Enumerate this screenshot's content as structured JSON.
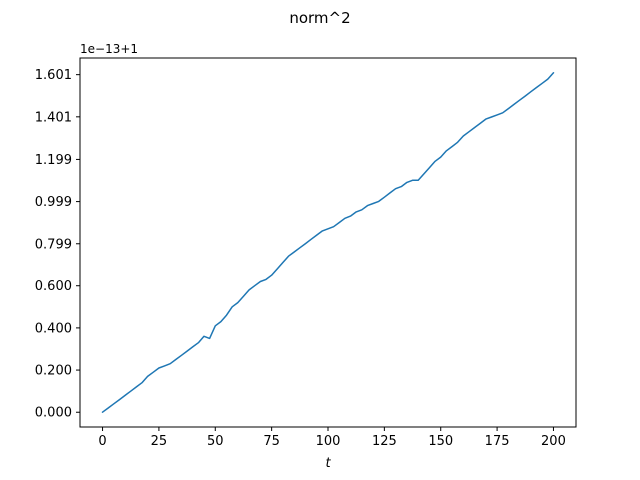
{
  "chart_data": {
    "type": "line",
    "title": "norm^2",
    "xlabel": "t",
    "ylabel": "",
    "y_offset_label": "1e−13+1",
    "xlim": [
      -10,
      210
    ],
    "ylim": [
      -0.07,
      1.68
    ],
    "xticks": [
      0,
      25,
      50,
      75,
      100,
      125,
      150,
      175,
      200
    ],
    "xtick_labels": [
      "0",
      "25",
      "50",
      "75",
      "100",
      "125",
      "150",
      "175",
      "200"
    ],
    "yticks": [
      0.0,
      0.2,
      0.4,
      0.6,
      0.799,
      0.999,
      1.199,
      1.401,
      1.601
    ],
    "ytick_labels": [
      "0.000",
      "0.200",
      "0.400",
      "0.600",
      "0.799",
      "0.999",
      "1.199",
      "1.401",
      "1.601"
    ],
    "grid": false,
    "series": [
      {
        "color": "#1f77b4",
        "x": [
          0,
          2.5,
          5,
          7.5,
          10,
          12.5,
          15,
          17.5,
          20,
          22.5,
          25,
          27.5,
          30,
          32.5,
          35,
          37.5,
          40,
          42.5,
          45,
          47.5,
          50,
          52.5,
          55,
          57.5,
          60,
          62.5,
          65,
          67.5,
          70,
          72.5,
          75,
          77.5,
          80,
          82.5,
          85,
          87.5,
          90,
          92.5,
          95,
          97.5,
          100,
          102.5,
          105,
          107.5,
          110,
          112.5,
          115,
          117.5,
          120,
          122.5,
          125,
          127.5,
          130,
          132.5,
          135,
          137.5,
          140,
          142.5,
          145,
          147.5,
          150,
          152.5,
          155,
          157.5,
          160,
          162.5,
          165,
          167.5,
          170,
          172.5,
          175,
          177.5,
          180,
          182.5,
          185,
          187.5,
          190,
          192.5,
          195,
          197.5,
          200
        ],
        "values": [
          0.0,
          0.02,
          0.04,
          0.06,
          0.08,
          0.1,
          0.12,
          0.14,
          0.17,
          0.19,
          0.21,
          0.22,
          0.23,
          0.25,
          0.27,
          0.29,
          0.31,
          0.33,
          0.36,
          0.35,
          0.41,
          0.43,
          0.46,
          0.5,
          0.52,
          0.55,
          0.58,
          0.6,
          0.62,
          0.63,
          0.65,
          0.68,
          0.71,
          0.74,
          0.76,
          0.78,
          0.8,
          0.82,
          0.84,
          0.86,
          0.87,
          0.88,
          0.9,
          0.92,
          0.93,
          0.95,
          0.96,
          0.98,
          0.99,
          1.0,
          1.02,
          1.04,
          1.06,
          1.07,
          1.09,
          1.1,
          1.1,
          1.13,
          1.16,
          1.19,
          1.21,
          1.24,
          1.26,
          1.28,
          1.31,
          1.33,
          1.35,
          1.37,
          1.39,
          1.4,
          1.41,
          1.42,
          1.44,
          1.46,
          1.48,
          1.5,
          1.52,
          1.54,
          1.56,
          1.58,
          1.61
        ]
      }
    ]
  }
}
